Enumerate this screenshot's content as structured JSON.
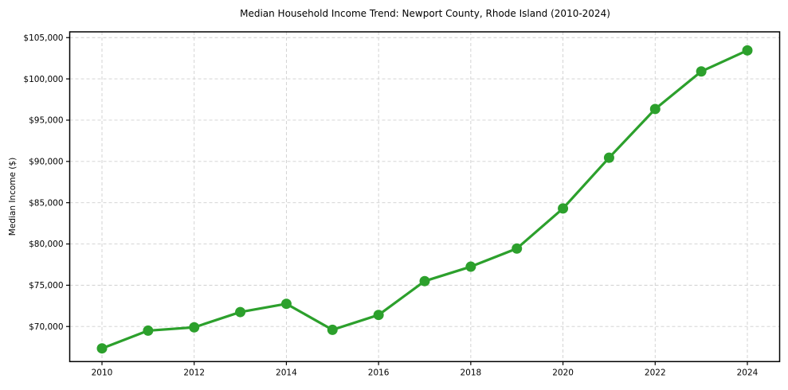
{
  "title": "Median Household Income Trend: Newport County, Rhode Island (2010-2024)",
  "chart_data": {
    "type": "line",
    "title": "Median Household Income Trend: Newport County, Rhode Island (2010-2024)",
    "xlabel": "",
    "ylabel": "Median Income ($)",
    "x": [
      2010,
      2011,
      2012,
      2013,
      2014,
      2015,
      2016,
      2017,
      2018,
      2019,
      2020,
      2021,
      2022,
      2023,
      2024
    ],
    "values": [
      67350,
      69500,
      69900,
      71750,
      72750,
      69600,
      71400,
      75500,
      77250,
      79450,
      84300,
      90450,
      96350,
      100900,
      103450
    ],
    "series_name": "Median Household Income",
    "xticks": {
      "values": [
        2010,
        2012,
        2014,
        2016,
        2018,
        2020,
        2022,
        2024
      ],
      "labels": [
        "2010",
        "2012",
        "2014",
        "2016",
        "2018",
        "2020",
        "2022",
        "2024"
      ]
    },
    "yticks": {
      "values": [
        70000,
        75000,
        80000,
        85000,
        90000,
        95000,
        100000,
        105000
      ],
      "labels": [
        "$70,000",
        "$75,000",
        "$80,000",
        "$85,000",
        "$90,000",
        "$95,000",
        "$100,000",
        "$105,000"
      ]
    },
    "xlim": [
      2009.3,
      2024.7
    ],
    "ylim": [
      65750,
      105700
    ],
    "grid": true,
    "grid_style": "dashed",
    "legend": null,
    "marker": "circle",
    "colors": {
      "line": "#2ca02c",
      "marker": "#2ca02c",
      "grid": "#cfcfcf",
      "spine": "#000000",
      "text": "#000000",
      "background": "#ffffff"
    }
  }
}
